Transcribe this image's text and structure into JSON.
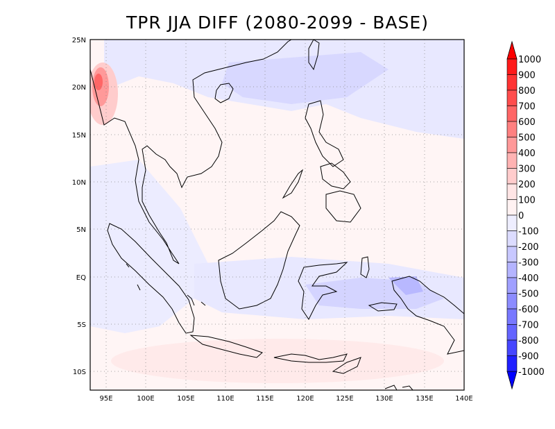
{
  "title": "TPR JJA DIFF (2080-2099 - BASE)",
  "map": {
    "lon_range": [
      93,
      140
    ],
    "lat_range": [
      -12,
      25
    ],
    "x_ticks": [
      "95E",
      "100E",
      "105E",
      "110E",
      "115E",
      "120E",
      "125E",
      "130E",
      "135E",
      "140E"
    ],
    "y_ticks": [
      "25N",
      "20N",
      "15N",
      "10N",
      "5N",
      "EQ",
      "5S",
      "10S"
    ],
    "gridlines": "dotted"
  },
  "colorbar": {
    "labels": [
      "1000",
      "900",
      "800",
      "700",
      "600",
      "500",
      "400",
      "300",
      "200",
      "100",
      "0",
      "-100",
      "-200",
      "-300",
      "-400",
      "-500",
      "-600",
      "-700",
      "-800",
      "-900",
      "-1000"
    ],
    "colors": [
      "#ff1a1a",
      "#ff3333",
      "#ff4d4d",
      "#ff6666",
      "#ff8080",
      "#ff9999",
      "#ffb3b3",
      "#ffcccc",
      "#ffe5e5",
      "#fff2f2",
      "#eeeeff",
      "#dcdcff",
      "#c8c8ff",
      "#b4b4ff",
      "#a0a0ff",
      "#8c8cff",
      "#7878ff",
      "#6464ff",
      "#4646ff",
      "#2020ff"
    ]
  }
}
